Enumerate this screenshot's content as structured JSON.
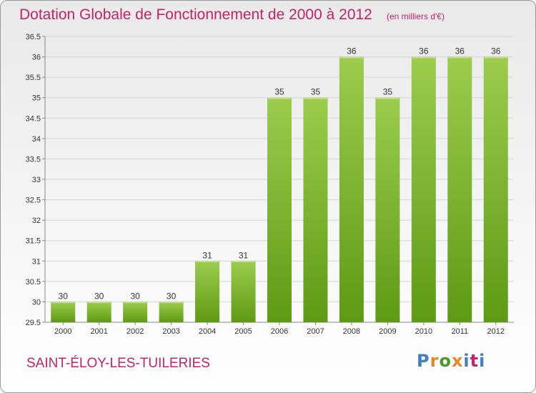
{
  "header": {
    "title": "Dotation Globale de Fonctionnement de 2000 à 2012",
    "unit": "(en milliers d'€)"
  },
  "footer": {
    "commune": "SAINT-ÉLOY-LES-TUILERIES",
    "logo_text": "Proxiti"
  },
  "colors": {
    "title": "#c0246a",
    "bar_light": "#9ccc4c",
    "bar_dark": "#5e9a14",
    "logo_letters": [
      "#3f7fc6",
      "#e8862a",
      "#4c9a2a",
      "#e8862a",
      "#3f7fc6",
      "#c0246a",
      "#3f7fc6"
    ]
  },
  "chart_data": {
    "type": "bar",
    "categories": [
      "2000",
      "2001",
      "2002",
      "2003",
      "2004",
      "2005",
      "2006",
      "2007",
      "2008",
      "2009",
      "2010",
      "2011",
      "2012"
    ],
    "values": [
      30,
      30,
      30,
      30,
      31,
      31,
      35,
      35,
      36,
      35,
      36,
      36,
      36
    ],
    "ylim": [
      29.5,
      36.5
    ],
    "yticks": [
      "29.5",
      "30",
      "30.5",
      "31",
      "31.5",
      "32",
      "32.5",
      "33",
      "33.5",
      "34",
      "34.5",
      "35",
      "35.5",
      "36",
      "36.5"
    ],
    "grid": true,
    "data_labels": true
  }
}
